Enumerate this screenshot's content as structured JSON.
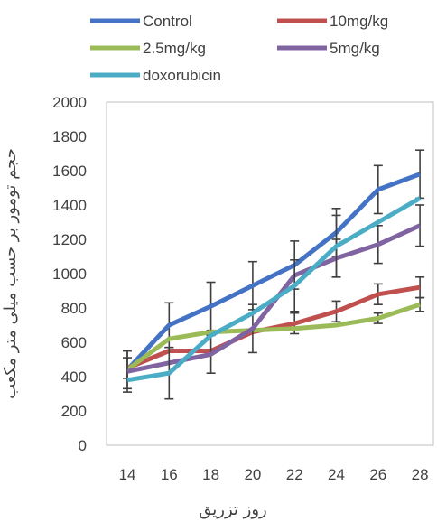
{
  "chart_data": {
    "type": "line",
    "xlabel": "روز تزریق",
    "ylabel": "حجم تومور بر حسب میلی متر مکعب",
    "x": [
      14,
      16,
      18,
      20,
      22,
      24,
      26,
      28
    ],
    "ylim": [
      0,
      2000
    ],
    "yticks": [
      0,
      200,
      400,
      600,
      800,
      1000,
      1200,
      1400,
      1600,
      1800,
      2000
    ],
    "grid": false,
    "legend_position": "top",
    "series": [
      {
        "name": "Control",
        "color": "#4472C4",
        "values": [
          440,
          700,
          810,
          930,
          1050,
          1240,
          1490,
          1580
        ],
        "errors": [
          110,
          130,
          140,
          140,
          140,
          140,
          140,
          140
        ]
      },
      {
        "name": "10mg/kg",
        "color": "#C0504D",
        "values": [
          450,
          550,
          550,
          660,
          710,
          780,
          880,
          920
        ],
        "errors": [
          60,
          0,
          0,
          0,
          60,
          60,
          60,
          60
        ]
      },
      {
        "name": "2.5mg/kg",
        "color": "#9BBB59",
        "values": [
          440,
          620,
          660,
          670,
          680,
          700,
          740,
          820
        ],
        "errors": [
          0,
          0,
          0,
          0,
          0,
          0,
          30,
          40
        ]
      },
      {
        "name": "5mg/kg",
        "color": "#8064A2",
        "values": [
          430,
          480,
          530,
          680,
          990,
          1090,
          1170,
          1280
        ],
        "errors": [
          120,
          0,
          110,
          140,
          0,
          110,
          110,
          120
        ]
      },
      {
        "name": "doxorubicin",
        "color": "#4BACC6",
        "values": [
          380,
          420,
          640,
          770,
          930,
          1160,
          1300,
          1440
        ],
        "errors": [
          0,
          150,
          0,
          0,
          150,
          180,
          0,
          0
        ]
      }
    ]
  }
}
